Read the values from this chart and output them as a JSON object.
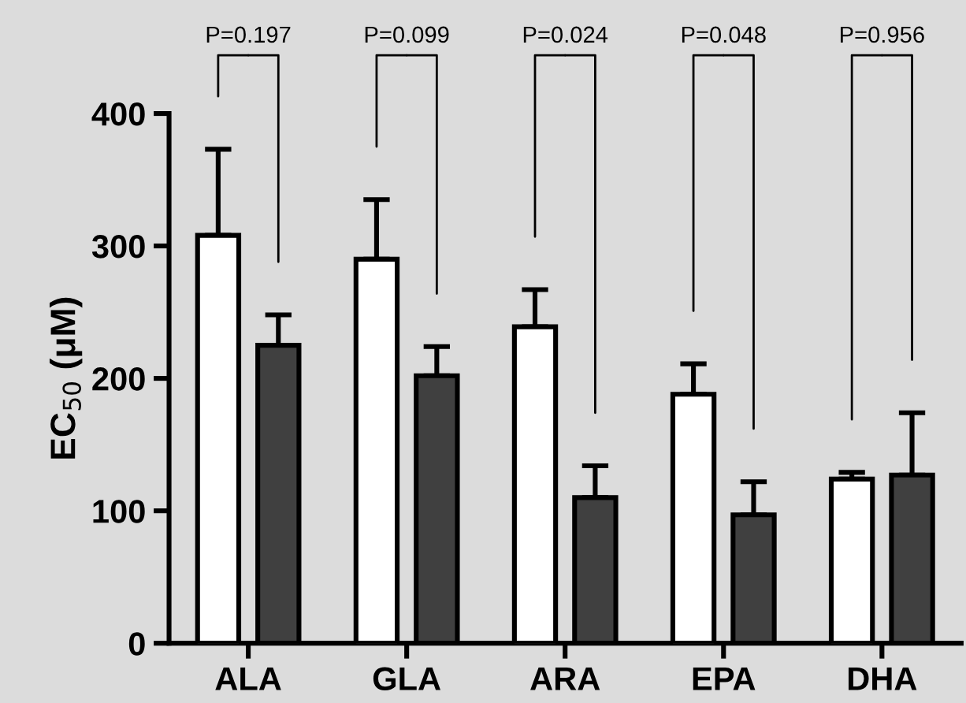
{
  "chart_data": {
    "type": "bar",
    "ylabel": "EC$_{50}$ (μM)",
    "categories": [
      "ALA",
      "GLA",
      "ARA",
      "EPA",
      "DHA"
    ],
    "series": [
      {
        "color": "#ffffff",
        "values": [
          308,
          290,
          239,
          188,
          124
        ],
        "errors": [
          [
            308,
            373
          ],
          [
            290,
            335
          ],
          [
            239,
            267
          ],
          [
            188,
            211
          ],
          [
            124,
            129
          ]
        ]
      },
      {
        "color": "#404040",
        "values": [
          225,
          202,
          110,
          97,
          127
        ],
        "errors": [
          [
            225,
            248
          ],
          [
            202,
            224
          ],
          [
            110,
            134
          ],
          [
            97,
            122
          ],
          [
            127,
            174
          ]
        ]
      }
    ],
    "ylim": [
      0,
      400
    ],
    "yticks": [
      0,
      100,
      200,
      300,
      400
    ],
    "grid": false,
    "legend": false,
    "annotations": [
      "P=0.197",
      "P=0.099",
      "P=0.024",
      "P=0.048",
      "P=0.956"
    ]
  }
}
